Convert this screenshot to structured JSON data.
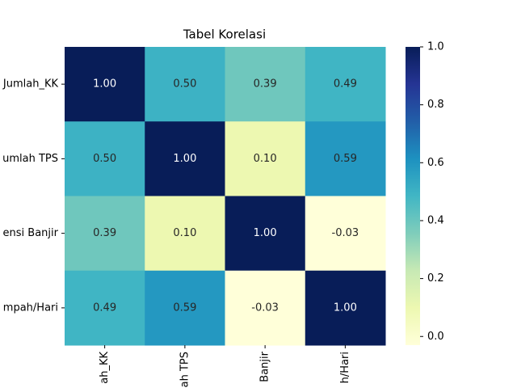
{
  "chart_data": {
    "type": "heatmap",
    "title": "Tabel Korelasi",
    "x_labels": [
      "ah_KK",
      "ah TPS",
      "Banjir",
      "h/Hari"
    ],
    "y_labels": [
      "Jumlah_KK",
      "umlah TPS",
      "ensi Banjir",
      "mpah/Hari"
    ],
    "values": [
      [
        1.0,
        0.5,
        0.39,
        0.49
      ],
      [
        0.5,
        1.0,
        0.1,
        0.59
      ],
      [
        0.39,
        0.1,
        1.0,
        -0.03
      ],
      [
        0.49,
        0.59,
        -0.03,
        1.0
      ]
    ],
    "value_labels": [
      [
        "1.00",
        "0.50",
        "0.39",
        "0.49"
      ],
      [
        "0.50",
        "1.00",
        "0.10",
        "0.59"
      ],
      [
        "0.39",
        "0.10",
        "1.00",
        "-0.03"
      ],
      [
        "0.49",
        "0.59",
        "-0.03",
        "1.00"
      ]
    ],
    "colormap": [
      "#ffffd9",
      "#edf8b1",
      "#c7e9b4",
      "#7fcdbb",
      "#41b6c4",
      "#1d91c0",
      "#225ea8",
      "#253494",
      "#081d58"
    ],
    "clim": [
      -0.03,
      1.0
    ],
    "cticks": [
      {
        "value": 0,
        "label": "0.0"
      },
      {
        "value": 0.2,
        "label": "0.2"
      },
      {
        "value": 0.4,
        "label": "0.4"
      },
      {
        "value": 0.6,
        "label": "0.6"
      },
      {
        "value": 0.8,
        "label": "0.8"
      },
      {
        "value": 1,
        "label": "1.0"
      }
    ]
  }
}
